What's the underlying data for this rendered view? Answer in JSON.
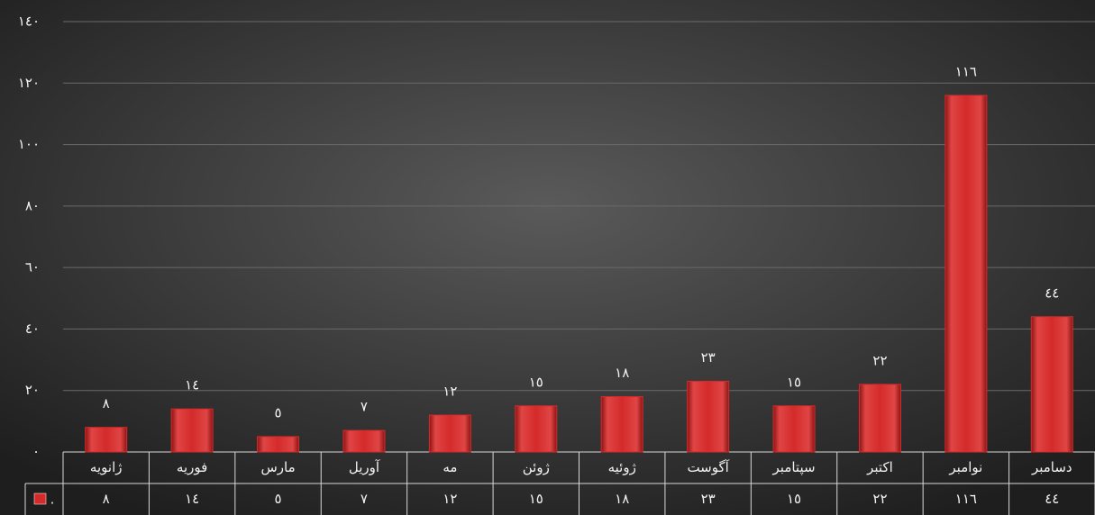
{
  "chart_data": {
    "type": "bar",
    "categories": [
      "ژانویه",
      "فوریه",
      "مارس",
      "آوریل",
      "مه",
      "ژوئن",
      "ژوئیه",
      "آگوست",
      "سپتامبر",
      "اکتبر",
      "نوامبر",
      "دسامبر"
    ],
    "series": [
      {
        "name": ".",
        "color": "#d42a2a",
        "values": [
          8,
          14,
          5,
          7,
          12,
          15,
          18,
          23,
          15,
          22,
          116,
          44
        ],
        "value_labels": [
          "٨",
          "١٤",
          "٥",
          "٧",
          "١٢",
          "١٥",
          "١٨",
          "٢٣",
          "١٥",
          "٢٢",
          "١١٦",
          "٤٤"
        ]
      }
    ],
    "ylim": [
      0,
      140
    ],
    "yticks": [
      {
        "value": 0,
        "label": "٠"
      },
      {
        "value": 20,
        "label": "٢٠"
      },
      {
        "value": 40,
        "label": "٤٠"
      },
      {
        "value": 60,
        "label": "٦٠"
      },
      {
        "value": 80,
        "label": "٨٠"
      },
      {
        "value": 100,
        "label": "١٠٠"
      },
      {
        "value": 120,
        "label": "١٢٠"
      },
      {
        "value": 140,
        "label": "١٤٠"
      }
    ],
    "grid": true
  }
}
